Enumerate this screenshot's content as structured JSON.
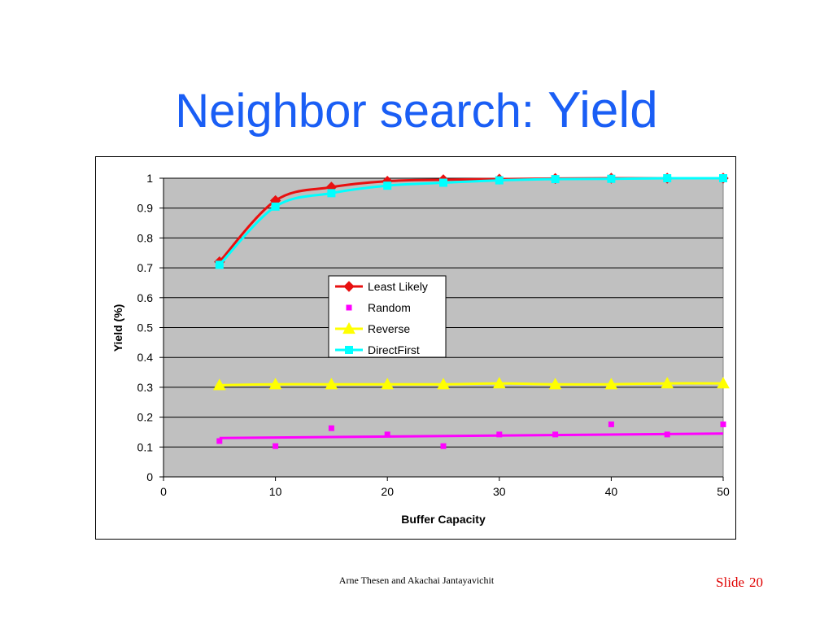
{
  "slide": {
    "title_main": "Neighbor search: ",
    "title_emph": "Yield",
    "footer": "Arne Thesen and Akachai Jantayavichit",
    "slide_label": "Slide",
    "slide_number": "20"
  },
  "chart_data": {
    "type": "line",
    "title": "",
    "xlabel": "Buffer Capacity",
    "ylabel": "Yield (%)",
    "xlim": [
      0,
      50
    ],
    "ylim": [
      0,
      1
    ],
    "xticks": [
      0,
      10,
      20,
      30,
      40,
      50
    ],
    "yticks": [
      0,
      0.1,
      0.2,
      0.3,
      0.4,
      0.5,
      0.6,
      0.7,
      0.8,
      0.9,
      1
    ],
    "grid": "horizontal",
    "plot_background": "#c0c0c0",
    "legend_position": "center",
    "series": [
      {
        "name": "Least Likely",
        "color": "#e81010",
        "marker": "diamond",
        "line": true,
        "x": [
          5,
          10,
          15,
          20,
          25,
          30,
          35,
          40,
          45,
          50
        ],
        "y": [
          0.72,
          0.925,
          0.97,
          0.99,
          0.995,
          0.997,
          0.999,
          1.0,
          1.0,
          1.0
        ]
      },
      {
        "name": "Random",
        "color": "#ff00ff",
        "marker": "square-small",
        "line": false,
        "x": [
          5,
          10,
          15,
          20,
          25,
          30,
          35,
          40,
          45,
          50
        ],
        "y": [
          0.12,
          0.103,
          0.163,
          0.142,
          0.103,
          0.142,
          0.142,
          0.176,
          0.142,
          0.176
        ]
      },
      {
        "name": "Reverse",
        "color": "#ffff00",
        "marker": "triangle",
        "line": true,
        "x": [
          5,
          10,
          15,
          20,
          25,
          30,
          35,
          40,
          45,
          50
        ],
        "y": [
          0.307,
          0.31,
          0.31,
          0.31,
          0.31,
          0.313,
          0.31,
          0.31,
          0.313,
          0.313
        ]
      },
      {
        "name": "DirectFirst",
        "color": "#00ffff",
        "marker": "square",
        "line": true,
        "x": [
          5,
          10,
          15,
          20,
          25,
          30,
          35,
          40,
          45,
          50
        ],
        "y": [
          0.71,
          0.905,
          0.95,
          0.975,
          0.985,
          0.993,
          0.997,
          0.998,
          1.0,
          1.0
        ]
      }
    ],
    "trendlines": [
      {
        "color": "#ff00ff",
        "x": [
          5,
          50
        ],
        "y": [
          0.13,
          0.145
        ]
      }
    ]
  }
}
